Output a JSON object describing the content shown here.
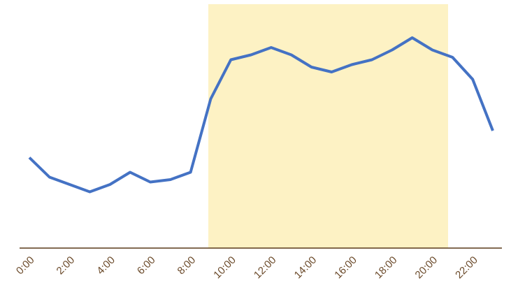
{
  "chart_data": {
    "type": "line",
    "categories": [
      "0:00",
      null,
      "2:00",
      null,
      "4:00",
      null,
      "6:00",
      null,
      "8:00",
      null,
      "10:00",
      null,
      "12:00",
      null,
      "14:00",
      null,
      "16:00",
      null,
      "18:00",
      null,
      "20:00",
      null,
      "22:00",
      null
    ],
    "values": [
      37,
      29,
      26,
      23,
      26,
      31,
      27,
      28,
      31,
      61,
      77,
      79,
      82,
      79,
      74,
      72,
      75,
      77,
      81,
      86,
      81,
      78,
      69,
      48
    ],
    "color": "#4472c4",
    "ylim": [
      0,
      100
    ]
  }
}
